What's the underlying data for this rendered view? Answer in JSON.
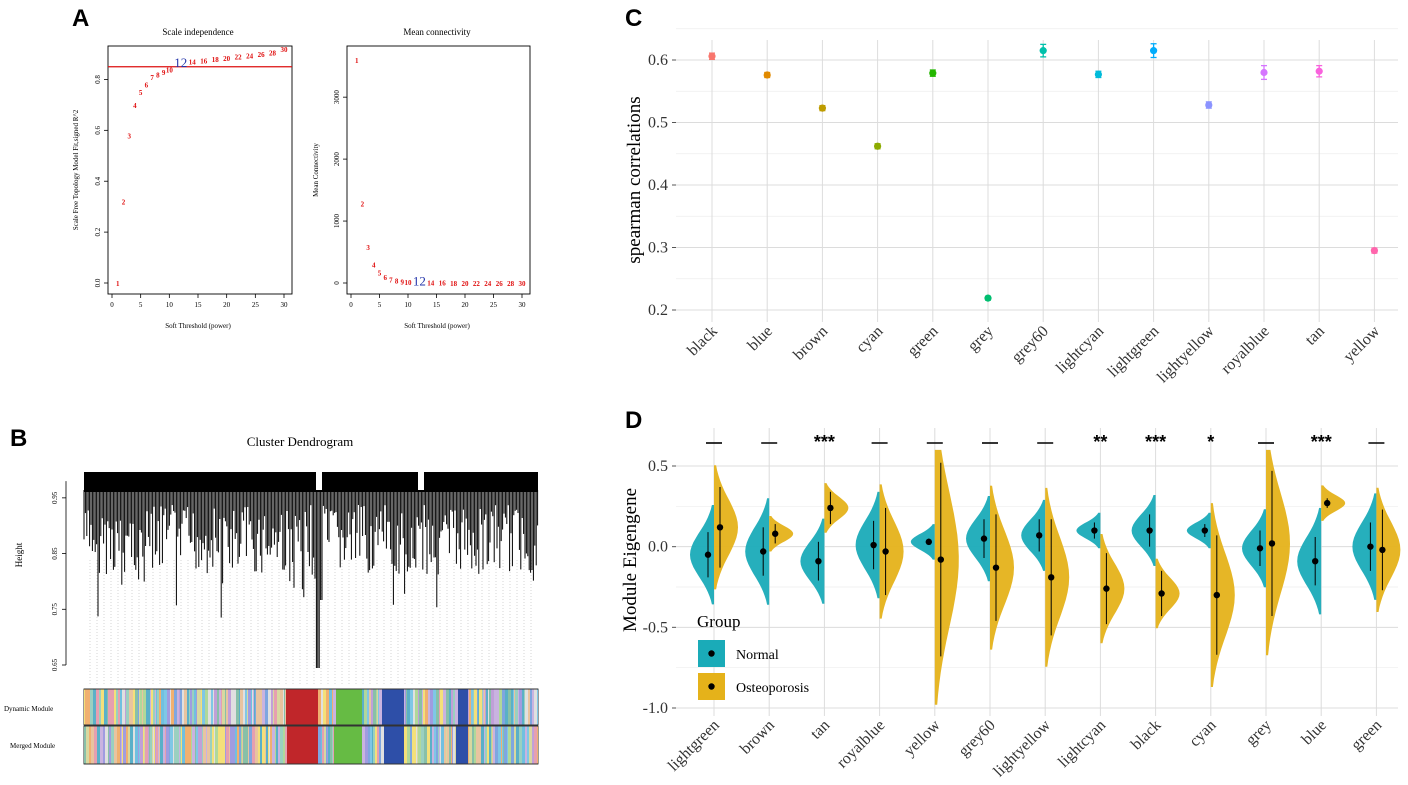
{
  "panels": {
    "a": "A",
    "b": "B",
    "c": "C",
    "d": "D"
  },
  "chart_data": [
    {
      "id": "A1",
      "type": "scatter",
      "title": "Scale independence",
      "xlabel": "Soft Threshold (power)",
      "ylabel": "Scale Free Topology Model Fit,signed R^2",
      "xlim": [
        0,
        30
      ],
      "ylim": [
        0,
        0.9
      ],
      "xticks": [
        0,
        5,
        10,
        15,
        20,
        25,
        30
      ],
      "yticks": [
        0.0,
        0.2,
        0.4,
        0.6,
        0.8
      ],
      "hline": 0.85,
      "highlight_power": 12,
      "points": [
        {
          "x": 1,
          "y": 0.0
        },
        {
          "x": 2,
          "y": 0.32
        },
        {
          "x": 3,
          "y": 0.58
        },
        {
          "x": 4,
          "y": 0.7
        },
        {
          "x": 5,
          "y": 0.75
        },
        {
          "x": 6,
          "y": 0.78
        },
        {
          "x": 7,
          "y": 0.81
        },
        {
          "x": 8,
          "y": 0.82
        },
        {
          "x": 9,
          "y": 0.83
        },
        {
          "x": 10,
          "y": 0.84
        },
        {
          "x": 12,
          "y": 0.86
        },
        {
          "x": 14,
          "y": 0.87
        },
        {
          "x": 16,
          "y": 0.875
        },
        {
          "x": 18,
          "y": 0.88
        },
        {
          "x": 20,
          "y": 0.885
        },
        {
          "x": 22,
          "y": 0.89
        },
        {
          "x": 24,
          "y": 0.895
        },
        {
          "x": 26,
          "y": 0.9
        },
        {
          "x": 28,
          "y": 0.905
        },
        {
          "x": 30,
          "y": 0.92
        }
      ]
    },
    {
      "id": "A2",
      "type": "scatter",
      "title": "Mean connectivity",
      "xlabel": "Soft Threshold (power)",
      "ylabel": "Mean Connectivity",
      "xlim": [
        0,
        30
      ],
      "ylim": [
        0,
        3600
      ],
      "xticks": [
        0,
        5,
        10,
        15,
        20,
        25,
        30
      ],
      "yticks": [
        0,
        1000,
        2000,
        3000
      ],
      "highlight_power": 12,
      "points": [
        {
          "x": 1,
          "y": 3600
        },
        {
          "x": 2,
          "y": 1280
        },
        {
          "x": 3,
          "y": 580
        },
        {
          "x": 4,
          "y": 300
        },
        {
          "x": 5,
          "y": 170
        },
        {
          "x": 6,
          "y": 100
        },
        {
          "x": 7,
          "y": 60
        },
        {
          "x": 8,
          "y": 40
        },
        {
          "x": 9,
          "y": 28
        },
        {
          "x": 10,
          "y": 20
        },
        {
          "x": 12,
          "y": 12
        },
        {
          "x": 14,
          "y": 8
        },
        {
          "x": 16,
          "y": 6
        },
        {
          "x": 18,
          "y": 4
        },
        {
          "x": 20,
          "y": 3
        },
        {
          "x": 22,
          "y": 3
        },
        {
          "x": 24,
          "y": 2
        },
        {
          "x": 26,
          "y": 2
        },
        {
          "x": 28,
          "y": 1
        },
        {
          "x": 30,
          "y": 1
        }
      ]
    },
    {
      "id": "B",
      "type": "other",
      "title": "Cluster Dendrogram",
      "ylabel": "Height",
      "ylim": [
        0.65,
        1.0
      ],
      "yticks": [
        0.65,
        0.75,
        0.85,
        0.95
      ],
      "row_labels": [
        "Dynamic Module",
        "Merged Module"
      ]
    },
    {
      "id": "C",
      "type": "scatter",
      "ylabel": "spearman correlations",
      "ylim": [
        0.2,
        0.65
      ],
      "yticks": [
        0.2,
        0.3,
        0.4,
        0.5,
        0.6
      ],
      "categories": [
        "black",
        "blue",
        "brown",
        "cyan",
        "green",
        "grey",
        "grey60",
        "lightcyan",
        "lightgreen",
        "lightyellow",
        "royalblue",
        "tan",
        "yellow"
      ],
      "values": [
        0.606,
        0.576,
        0.523,
        0.462,
        0.579,
        0.219,
        0.615,
        0.577,
        0.615,
        0.528,
        0.58,
        0.582,
        0.295
      ],
      "errors": [
        0.005,
        0.004,
        0.004,
        0.004,
        0.005,
        0.003,
        0.01,
        0.005,
        0.011,
        0.005,
        0.011,
        0.009,
        0.004
      ],
      "colors": [
        "#F8766D",
        "#E18A00",
        "#BE9C00",
        "#8CAB00",
        "#24B700",
        "#00BE70",
        "#00C1AB",
        "#00BBDA",
        "#00ACFC",
        "#8B93FF",
        "#D575FE",
        "#F962DD",
        "#FF65AC"
      ]
    },
    {
      "id": "D",
      "type": "other",
      "ylabel": "Module Eigengene",
      "ylim": [
        -1.0,
        0.6
      ],
      "yticks": [
        -1.0,
        -0.5,
        0.0,
        0.5
      ],
      "categories": [
        "lightgreen",
        "brown",
        "tan",
        "royalblue",
        "yellow",
        "grey60",
        "lightyellow",
        "lightcyan",
        "black",
        "cyan",
        "grey",
        "blue",
        "green"
      ],
      "significance": [
        "—",
        "—",
        "***",
        "—",
        "—",
        "—",
        "—",
        "**",
        "***",
        "*",
        "—",
        "***",
        "—"
      ],
      "legend_title": "Group",
      "series": [
        {
          "name": "Normal",
          "color": "#1AABB8",
          "means": [
            -0.05,
            -0.03,
            -0.09,
            0.01,
            0.03,
            0.05,
            0.07,
            0.1,
            0.1,
            0.1,
            -0.01,
            -0.09,
            0.0
          ],
          "err": [
            0.14,
            0.15,
            0.12,
            0.15,
            0.02,
            0.12,
            0.1,
            0.05,
            0.1,
            0.04,
            0.11,
            0.15,
            0.15
          ]
        },
        {
          "name": "Osteoporosis",
          "color": "#E5B21A",
          "means": [
            0.12,
            0.08,
            0.24,
            -0.03,
            -0.08,
            -0.13,
            -0.19,
            -0.26,
            -0.29,
            -0.3,
            0.02,
            0.27,
            -0.02
          ],
          "err": [
            0.25,
            0.06,
            0.1,
            0.27,
            0.6,
            0.33,
            0.36,
            0.22,
            0.14,
            0.37,
            0.45,
            0.03,
            0.25
          ]
        }
      ]
    }
  ]
}
